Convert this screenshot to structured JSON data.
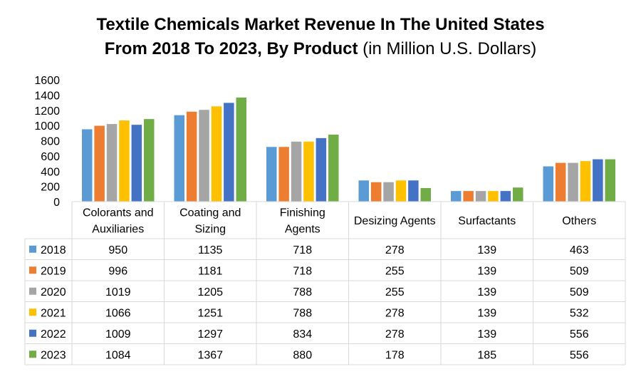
{
  "chart_data": {
    "type": "bar",
    "title_line1": "Textile Chemicals Market Revenue In The United States",
    "title_line2_bold": "From 2018 To 2023, By Product",
    "title_line2_normal": " (in Million U.S. Dollars)",
    "categories": [
      [
        "Colorants and",
        "Auxiliaries"
      ],
      [
        "Coating and",
        "Sizing"
      ],
      [
        "Finishing",
        "Agents"
      ],
      [
        "Desizing Agents"
      ],
      [
        "Surfactants"
      ],
      [
        "Others"
      ]
    ],
    "yticks": [
      "0",
      "200",
      "400",
      "600",
      "800",
      "1000",
      "1200",
      "1400",
      "1600"
    ],
    "ylim": [
      0,
      1600
    ],
    "grid": false,
    "legend": "data-table-left",
    "series": [
      {
        "name": "2018",
        "color": "#5b9bd5",
        "values": [
          950,
          1135,
          718,
          278,
          139,
          463
        ]
      },
      {
        "name": "2019",
        "color": "#ed7d31",
        "values": [
          996,
          1181,
          718,
          255,
          139,
          509
        ]
      },
      {
        "name": "2020",
        "color": "#a5a5a5",
        "values": [
          1019,
          1205,
          788,
          255,
          139,
          509
        ]
      },
      {
        "name": "2021",
        "color": "#ffc000",
        "values": [
          1066,
          1251,
          788,
          278,
          139,
          532
        ]
      },
      {
        "name": "2022",
        "color": "#4472c4",
        "values": [
          1009,
          1297,
          834,
          278,
          139,
          556
        ]
      },
      {
        "name": "2023",
        "color": "#70ad47",
        "values": [
          1084,
          1367,
          880,
          178,
          185,
          556
        ]
      }
    ]
  }
}
